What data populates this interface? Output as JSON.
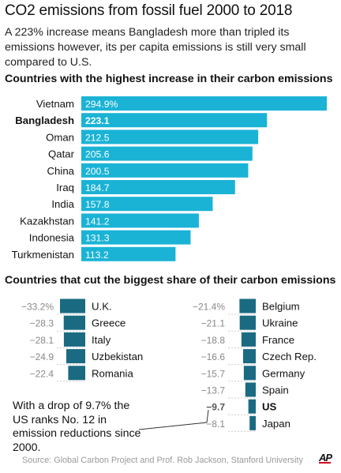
{
  "title": "CO2 emissions from fossil fuel 2000 to 2018",
  "subtitle": "A 223% increase means Bangladesh more than tripled its emissions however, its per capita emissions is still very small compared to U.S.",
  "colors": {
    "bar": "#1ab3d6",
    "cut_bar": "#1a6a82",
    "highlight_text": "#111111"
  },
  "chart_data": [
    {
      "type": "bar",
      "orientation": "horizontal",
      "title": "Countries with the highest increase in their carbon emissions",
      "categories": [
        "Vietnam",
        "Bangladesh",
        "Oman",
        "Qatar",
        "China",
        "Iraq",
        "India",
        "Kazakhstan",
        "Indonesia",
        "Turkmenistan"
      ],
      "values": [
        294.9,
        223.1,
        212.5,
        205.6,
        200.5,
        184.7,
        157.8,
        141.2,
        131.3,
        113.2
      ],
      "value_labels": [
        "294.9%",
        "223.1",
        "212.5",
        "205.6",
        "200.5",
        "184.7",
        "157.8",
        "141.2",
        "131.3",
        "113.2"
      ],
      "highlight": "Bangladesh",
      "grid": false
    },
    {
      "type": "bar",
      "orientation": "horizontal",
      "title": "Countries that cut the biggest share of their carbon emissions",
      "columns": [
        {
          "categories": [
            "U.K.",
            "Greece",
            "Italy",
            "Uzbekistan",
            "Romania"
          ],
          "values": [
            -33.2,
            -28.3,
            -28.1,
            -24.9,
            -22.4
          ],
          "value_labels": [
            "−33.2%",
            "−28.3",
            "−28.1",
            "−24.9",
            "−22.4"
          ]
        },
        {
          "categories": [
            "Belgium",
            "Ukraine",
            "France",
            "Czech Rep.",
            "Germany",
            "Spain",
            "US",
            "Japan"
          ],
          "values": [
            -21.4,
            -21.1,
            -18.8,
            -16.6,
            -15.7,
            -13.7,
            -9.7,
            -8.1
          ],
          "value_labels": [
            "−21.4%",
            "−21.1",
            "−18.8",
            "−16.6",
            "−15.7",
            "−13.7",
            "−9.7",
            "−8.1"
          ]
        }
      ],
      "highlight": "US",
      "grid": false
    }
  ],
  "annotation": "With a drop of 9.7% the US ranks No. 12 in emission reductions since 2000.",
  "source": "Source: Global Carbon Project and Prof. Rob Jackson, Stanford University",
  "logo": "AP"
}
